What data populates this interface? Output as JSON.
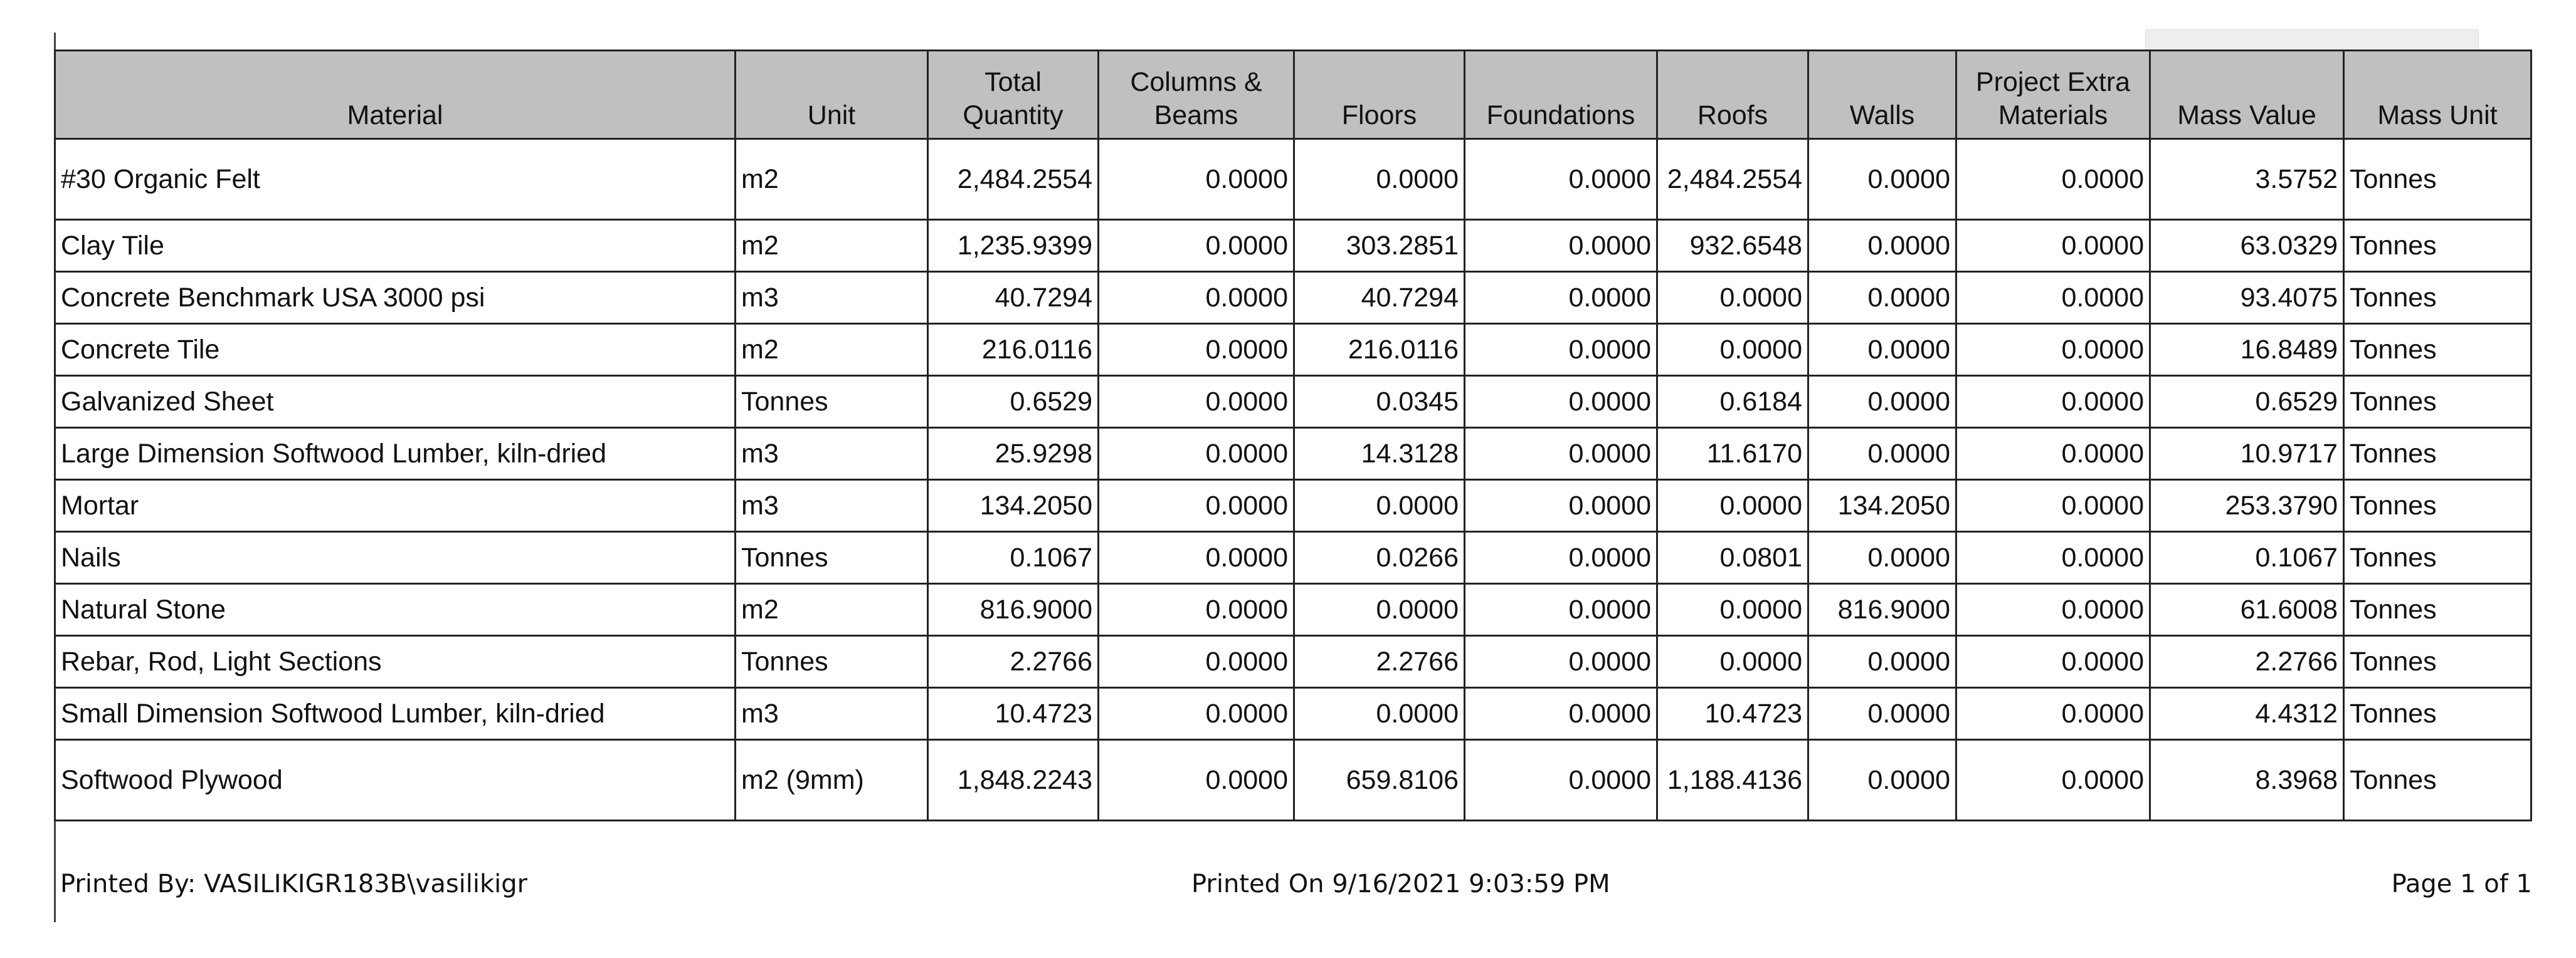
{
  "table": {
    "headers": [
      "Material",
      "Unit",
      "Total Quantity",
      "Columns & Beams",
      "Floors",
      "Foundations",
      "Roofs",
      "Walls",
      "Project Extra Materials",
      "Mass Value",
      "Mass Unit"
    ],
    "rows": [
      [
        "#30 Organic Felt",
        "m2",
        "2,484.2554",
        "0.0000",
        "0.0000",
        "0.0000",
        "2,484.2554",
        "0.0000",
        "0.0000",
        "3.5752",
        "Tonnes"
      ],
      [
        "Clay Tile",
        "m2",
        "1,235.9399",
        "0.0000",
        "303.2851",
        "0.0000",
        "932.6548",
        "0.0000",
        "0.0000",
        "63.0329",
        "Tonnes"
      ],
      [
        "Concrete Benchmark  USA 3000 psi",
        "m3",
        "40.7294",
        "0.0000",
        "40.7294",
        "0.0000",
        "0.0000",
        "0.0000",
        "0.0000",
        "93.4075",
        "Tonnes"
      ],
      [
        "Concrete Tile",
        "m2",
        "216.0116",
        "0.0000",
        "216.0116",
        "0.0000",
        "0.0000",
        "0.0000",
        "0.0000",
        "16.8489",
        "Tonnes"
      ],
      [
        "Galvanized Sheet",
        "Tonnes",
        "0.6529",
        "0.0000",
        "0.0345",
        "0.0000",
        "0.6184",
        "0.0000",
        "0.0000",
        "0.6529",
        "Tonnes"
      ],
      [
        "Large Dimension Softwood Lumber, kiln-dried",
        "m3",
        "25.9298",
        "0.0000",
        "14.3128",
        "0.0000",
        "11.6170",
        "0.0000",
        "0.0000",
        "10.9717",
        "Tonnes"
      ],
      [
        "Mortar",
        "m3",
        "134.2050",
        "0.0000",
        "0.0000",
        "0.0000",
        "0.0000",
        "134.2050",
        "0.0000",
        "253.3790",
        "Tonnes"
      ],
      [
        "Nails",
        "Tonnes",
        "0.1067",
        "0.0000",
        "0.0266",
        "0.0000",
        "0.0801",
        "0.0000",
        "0.0000",
        "0.1067",
        "Tonnes"
      ],
      [
        "Natural Stone",
        "m2",
        "816.9000",
        "0.0000",
        "0.0000",
        "0.0000",
        "0.0000",
        "816.9000",
        "0.0000",
        "61.6008",
        "Tonnes"
      ],
      [
        "Rebar, Rod, Light Sections",
        "Tonnes",
        "2.2766",
        "0.0000",
        "2.2766",
        "0.0000",
        "0.0000",
        "0.0000",
        "0.0000",
        "2.2766",
        "Tonnes"
      ],
      [
        "Small Dimension Softwood Lumber, kiln-dried",
        "m3",
        "10.4723",
        "0.0000",
        "0.0000",
        "0.0000",
        "10.4723",
        "0.0000",
        "0.0000",
        "4.4312",
        "Tonnes"
      ],
      [
        "Softwood Plywood",
        "m2 (9mm)",
        "1,848.2243",
        "0.0000",
        "659.8106",
        "0.0000",
        "1,188.4136",
        "0.0000",
        "0.0000",
        "8.3968",
        "Tonnes"
      ]
    ]
  },
  "footer": {
    "printed_by": "Printed By: VASILIKIGR183B\\vasilikigr",
    "printed_on": "Printed On 9/16/2021 9:03:59 PM",
    "page": "Page 1 of 1"
  }
}
